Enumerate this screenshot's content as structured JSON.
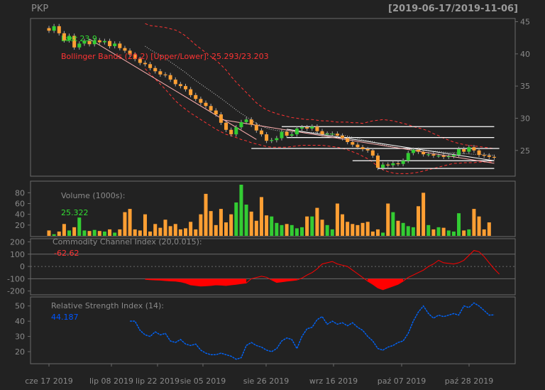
{
  "header": {
    "symbol": "PKP",
    "range": "[2019-06-17/2019-11-06]"
  },
  "chart_data": [
    {
      "type": "candlestick",
      "panel": "price",
      "legend_last": "Last 23.9",
      "legend_bbands": "Bollinger Bands (20,2) [Upper/Lower]: 25.293/23.203",
      "y_ticks": [
        25,
        30,
        35,
        40,
        45
      ],
      "ylim": [
        21.0,
        45.5
      ],
      "closes": [
        43.6,
        44.3,
        43.2,
        42.1,
        42.8,
        41.0,
        41.6,
        42.0,
        41.5,
        42.1,
        41.8,
        42.0,
        41.2,
        41.6,
        40.9,
        40.5,
        39.9,
        39.2,
        38.6,
        38.4,
        37.8,
        37.3,
        36.8,
        36.7,
        36.0,
        35.3,
        35.0,
        34.5,
        33.6,
        33.0,
        32.4,
        31.9,
        31.2,
        30.6,
        29.3,
        28.2,
        27.5,
        28.6,
        29.4,
        29.8,
        29.0,
        28.1,
        27.5,
        26.5,
        26.6,
        26.9,
        27.9,
        27.3,
        27.5,
        28.4,
        28.6,
        28.4,
        28.7,
        28.0,
        27.5,
        27.6,
        27.6,
        27.3,
        26.9,
        26.3,
        25.9,
        25.5,
        25.2,
        25.0,
        24.2,
        22.3,
        22.8,
        22.7,
        23.0,
        22.9,
        23.4,
        24.6,
        25.1,
        24.8,
        24.4,
        24.4,
        24.2,
        24.2,
        24.0,
        24.1,
        24.3,
        25.2,
        24.8,
        25.5,
        25.0,
        24.3,
        24.2,
        24.0,
        23.9
      ],
      "bb_upper": [
        null,
        null,
        null,
        null,
        null,
        null,
        null,
        null,
        null,
        null,
        null,
        null,
        null,
        null,
        null,
        null,
        null,
        null,
        null,
        44.7,
        44.4,
        44.3,
        44.2,
        44.1,
        43.9,
        43.7,
        43.3,
        42.8,
        42.1,
        41.4,
        40.8,
        40.2,
        39.6,
        39.0,
        38.3,
        37.5,
        36.5,
        35.6,
        34.8,
        34.0,
        33.2,
        32.4,
        31.8,
        31.3,
        31.0,
        30.7,
        30.5,
        30.3,
        30.1,
        30.0,
        29.9,
        29.8,
        29.8,
        29.7,
        29.6,
        29.6,
        29.5,
        29.4,
        29.4,
        29.4,
        29.3,
        29.3,
        29.2,
        29.4,
        29.6,
        29.7,
        29.8,
        29.7,
        29.6,
        29.4,
        29.2,
        29.0,
        28.7,
        28.5,
        28.3,
        28.0,
        27.6,
        27.3,
        26.9,
        26.6,
        26.3,
        26.1,
        25.9,
        25.8,
        25.7,
        25.6,
        25.5,
        25.4,
        25.3
      ],
      "bb_lower": [
        null,
        null,
        null,
        null,
        null,
        null,
        null,
        null,
        null,
        null,
        null,
        null,
        null,
        null,
        null,
        null,
        null,
        null,
        null,
        37.7,
        36.9,
        36.1,
        35.3,
        34.5,
        33.6,
        32.7,
        32.0,
        31.4,
        30.8,
        30.3,
        29.8,
        29.3,
        28.8,
        28.3,
        27.9,
        27.5,
        27.3,
        27.0,
        26.7,
        26.5,
        26.2,
        26.0,
        25.8,
        25.6,
        25.5,
        25.5,
        25.5,
        25.5,
        25.6,
        25.7,
        25.8,
        25.8,
        25.8,
        25.8,
        25.8,
        25.7,
        25.6,
        25.5,
        25.3,
        25.1,
        24.8,
        24.5,
        24.1,
        23.7,
        23.2,
        22.5,
        22.0,
        21.7,
        21.5,
        21.4,
        21.4,
        21.4,
        21.5,
        21.6,
        21.8,
        22.0,
        22.2,
        22.4,
        22.6,
        22.8,
        23.0,
        23.0,
        23.1,
        23.1,
        23.1,
        23.2,
        23.2,
        23.2,
        23.2
      ],
      "trend_lines": [
        {
          "from": [
            8,
            42.3
          ],
          "to": [
            41,
            26.7
          ],
          "color": "#ffb0b0"
        },
        {
          "from": [
            34,
            29.8
          ],
          "to": [
            88,
            23.0
          ],
          "color": "#ffb0b0"
        },
        {
          "from": [
            47,
            28.3
          ],
          "to": [
            88,
            23.4
          ],
          "color": "#ffffff"
        }
      ],
      "h_lines": [
        {
          "y": 28.7,
          "x0": 46,
          "x1": 88
        },
        {
          "y": 27.0,
          "x0": 47,
          "x1": 88
        },
        {
          "y": 25.3,
          "x0": 40,
          "x1": 89
        },
        {
          "y": 23.4,
          "x0": 60,
          "x1": 88
        },
        {
          "y": 22.2,
          "x0": 65,
          "x1": 88
        }
      ]
    },
    {
      "type": "bar",
      "panel": "volume",
      "label": "Volume (1000s):",
      "last_value": "25.322",
      "y_ticks": [
        20,
        40,
        60,
        80
      ],
      "ylim": [
        0,
        95
      ],
      "values": [
        10,
        3,
        8,
        22,
        10,
        16,
        34,
        10,
        9,
        11,
        9,
        8,
        12,
        6,
        12,
        44,
        50,
        12,
        10,
        40,
        8,
        22,
        15,
        30,
        18,
        22,
        12,
        14,
        26,
        12,
        40,
        78,
        46,
        20,
        50,
        25,
        40,
        62,
        95,
        58,
        45,
        28,
        72,
        38,
        36,
        24,
        20,
        22,
        20,
        14,
        16,
        36,
        36,
        52,
        30,
        20,
        12,
        60,
        40,
        26,
        22,
        20,
        24,
        26,
        8,
        12,
        6,
        60,
        44,
        28,
        24,
        18,
        16,
        55,
        80,
        20,
        12,
        16,
        15,
        10,
        8,
        42,
        10,
        12,
        50,
        36,
        12,
        25
      ]
    },
    {
      "type": "area",
      "panel": "cci",
      "label": "Commodity Channel Index (20,0.015):",
      "last_value": "-62.62",
      "y_ticks": [
        -200,
        -100,
        0,
        100,
        200
      ],
      "ylim": [
        -225,
        220
      ],
      "values": [
        null,
        null,
        null,
        null,
        null,
        null,
        null,
        null,
        null,
        null,
        null,
        null,
        null,
        null,
        null,
        null,
        null,
        null,
        null,
        -105,
        -108,
        -110,
        -112,
        -115,
        -118,
        -120,
        -125,
        -135,
        -150,
        -155,
        -160,
        -158,
        -155,
        -150,
        -152,
        -155,
        -150,
        -145,
        -140,
        -135,
        -100,
        -90,
        -80,
        -88,
        -110,
        -130,
        -125,
        -120,
        -115,
        -110,
        -95,
        -70,
        -50,
        -20,
        20,
        30,
        40,
        20,
        10,
        0,
        -30,
        -60,
        -90,
        -120,
        -145,
        -175,
        -190,
        -175,
        -160,
        -145,
        -120,
        -90,
        -70,
        -50,
        -30,
        0,
        20,
        50,
        30,
        25,
        20,
        30,
        50,
        90,
        130,
        120,
        80,
        30,
        -20,
        -62.62
      ]
    },
    {
      "type": "line",
      "panel": "rsi",
      "label": "Relative Strength Index (14):",
      "last_value": "44.187",
      "y_ticks": [
        20,
        30,
        40,
        50
      ],
      "ylim": [
        13,
        55
      ],
      "values": [
        null,
        null,
        null,
        null,
        null,
        null,
        null,
        null,
        null,
        null,
        null,
        null,
        null,
        null,
        null,
        null,
        40,
        40,
        34,
        31,
        30,
        33,
        31,
        32,
        27,
        26,
        28,
        25,
        24,
        25,
        21,
        19,
        18,
        18,
        19,
        18,
        17,
        15,
        16,
        24,
        26,
        24,
        23,
        21,
        20,
        22,
        27,
        29,
        28,
        22,
        30,
        35,
        36,
        41,
        43,
        38,
        40,
        38,
        39,
        37,
        39,
        36,
        34,
        30,
        27,
        22,
        21,
        23,
        24,
        26,
        27,
        32,
        40,
        46,
        50,
        45,
        42,
        44,
        43,
        44,
        45,
        44,
        50,
        49,
        52,
        50,
        47,
        44,
        44.187
      ]
    }
  ],
  "x_axis": {
    "labels": [
      {
        "text": "cze 17 2019",
        "idx": 0
      },
      {
        "text": "lip 08 2019",
        "idx": 15
      },
      {
        "text": "lip 22 2019",
        "idx": 25
      },
      {
        "text": "sie 05 2019",
        "idx": 35
      },
      {
        "text": "sie 26 2019",
        "idx": 50
      },
      {
        "text": "wrz 16 2019",
        "idx": 65
      },
      {
        "text": "paź 07 2019",
        "idx": 80
      },
      {
        "text": "paź 28 2019",
        "idx": 95
      }
    ]
  },
  "colors": {
    "up": "#33cc33",
    "down": "#ff9f33",
    "bb": "#ff3333",
    "sma": "#cccccc",
    "cci": "#ff0000",
    "rsi": "#0066ff",
    "grid": "#6a6a6a",
    "frame": "#6a6a6a",
    "text": "#8a8a8a",
    "last_green": "#33dd33",
    "last_red": "#ff3333",
    "last_blue": "#0055ff",
    "trend_white": "#ffffff",
    "trend_pink": "#ffb0b0"
  }
}
